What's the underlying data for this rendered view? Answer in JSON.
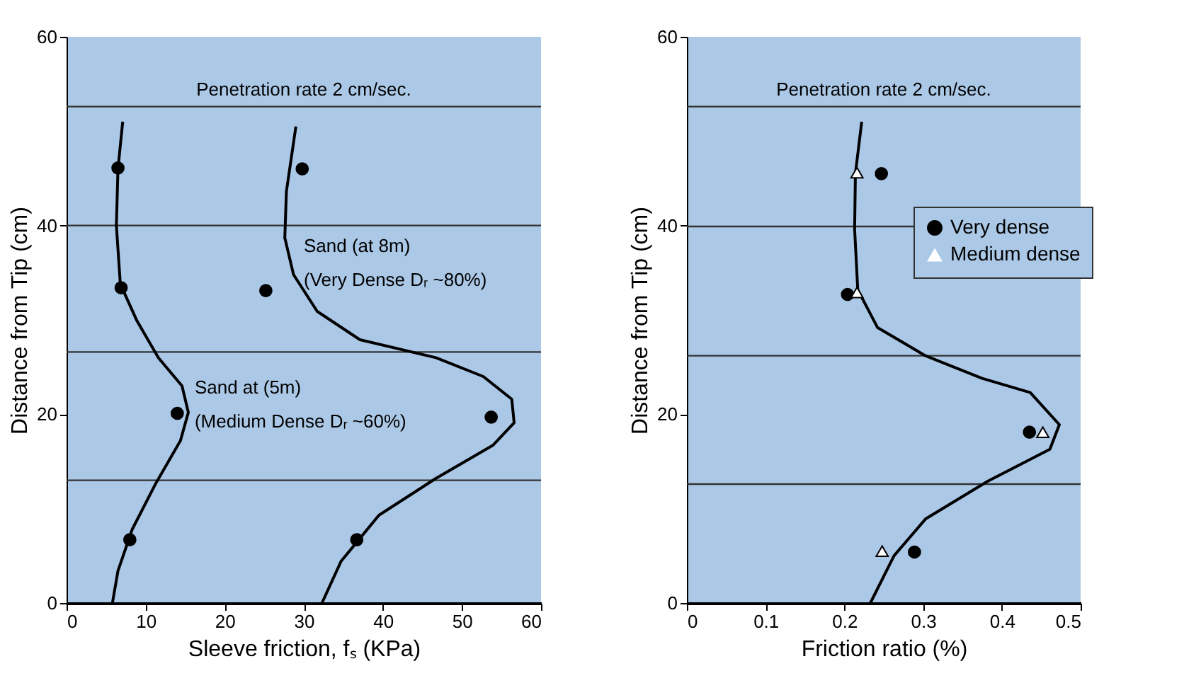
{
  "chart_data": [
    {
      "type": "line",
      "xlabel": "Sleeve friction, fₛ (KPa)",
      "ylabel": "Distance from Tip (cm)",
      "xlim": [
        0,
        60
      ],
      "xticks": [
        0,
        10,
        20,
        30,
        40,
        50,
        60
      ],
      "ylim": [
        0,
        60
      ],
      "yticks": [
        0,
        20,
        40,
        60
      ],
      "grid": false,
      "legend": false,
      "series": [
        {
          "color": "#000000",
          "x": [
            7.1,
            6.5,
            6.3,
            6.8,
            8.9,
            11.6,
            14.6,
            15.4,
            14.4,
            11.3,
            8.3,
            6.5,
            5.8
          ],
          "values": [
            51,
            46,
            40,
            33.8,
            29.9,
            26,
            23,
            20.2,
            17.2,
            12.7,
            7.8,
            3.4,
            0
          ]
        },
        {
          "color": "#000000",
          "x": [
            29,
            27.8,
            27.6,
            28.7,
            31.7,
            37.1,
            46.7,
            52.7,
            56.3,
            56.6,
            53.9,
            46.7,
            39.5,
            34.7,
            32.3
          ],
          "values": [
            50.5,
            43.6,
            38.7,
            34.8,
            30.9,
            27.9,
            26,
            24,
            21.6,
            19.1,
            16.7,
            13.2,
            9.3,
            4.4,
            0
          ]
        },
        {
          "type": "scatter",
          "marker": "circle",
          "color": "#000000",
          "x": [
            6.5,
            6.9,
            14,
            8
          ],
          "values": [
            46.1,
            33.4,
            20.1,
            6.7
          ]
        },
        {
          "type": "scatter",
          "marker": "circle",
          "color": "#000000",
          "x": [
            29.8,
            25.2,
            53.7,
            36.7
          ],
          "values": [
            46,
            33.1,
            19.7,
            6.7
          ]
        }
      ],
      "ref_lines": [
        {
          "axis": "y",
          "value": 52.6,
          "label": "Penetration rate 2 cm/sec.",
          "color": "#333333"
        },
        {
          "axis": "y",
          "value": 40,
          "label": null,
          "color": "#333333"
        },
        {
          "axis": "y",
          "value": 26.6,
          "label": null,
          "color": "#333333"
        },
        {
          "axis": "y",
          "value": 13,
          "label": null,
          "color": "#333333"
        }
      ],
      "annotations": [
        "Sand (at 8m)",
        "(Very Dense Dᵣ ~80%)",
        "Sand at (5m)",
        "(Medium Dense Dᵣ ~60%)"
      ]
    },
    {
      "type": "line",
      "xlabel": "Friction ratio (%)",
      "ylabel": "Distance from Tip (cm)",
      "xlim": [
        0,
        0.5
      ],
      "xticks": [
        0,
        0.1,
        0.2,
        0.3,
        0.4,
        0.5
      ],
      "ylim": [
        0,
        60
      ],
      "yticks": [
        0,
        20,
        40,
        60
      ],
      "grid": false,
      "legend": "right",
      "series": [
        {
          "color": "#000000",
          "x": [
            0.222,
            0.214,
            0.213,
            0.217,
            0.242,
            0.303,
            0.375,
            0.436,
            0.473,
            0.461,
            0.382,
            0.303,
            0.263,
            0.233
          ],
          "values": [
            51,
            45.5,
            39.6,
            33.2,
            29.2,
            26.2,
            23.8,
            22.3,
            18.9,
            16.3,
            12.9,
            8.9,
            5,
            0
          ]
        },
        {
          "type": "scatter",
          "name": "Very dense",
          "marker": "circle",
          "color": "#000000",
          "x": [
            0.247,
            0.204,
            0.435,
            0.289
          ],
          "values": [
            45.5,
            32.7,
            18.1,
            5.4
          ]
        },
        {
          "type": "scatter",
          "name": "Medium dense",
          "marker": "triangle",
          "color": "#ffffff",
          "x": [
            0.216,
            0.216,
            0.452,
            0.248
          ],
          "values": [
            45.6,
            32.9,
            18.1,
            5.5
          ]
        }
      ],
      "ref_lines": [
        {
          "axis": "y",
          "value": 52.6,
          "label": "Penetration rate 2 cm/sec.",
          "color": "#333333"
        },
        {
          "axis": "y",
          "value": 39.9,
          "label": null,
          "color": "#333333"
        },
        {
          "axis": "y",
          "value": 26.2,
          "label": null,
          "color": "#333333"
        },
        {
          "axis": "y",
          "value": 12.6,
          "label": null,
          "color": "#333333"
        }
      ]
    }
  ]
}
